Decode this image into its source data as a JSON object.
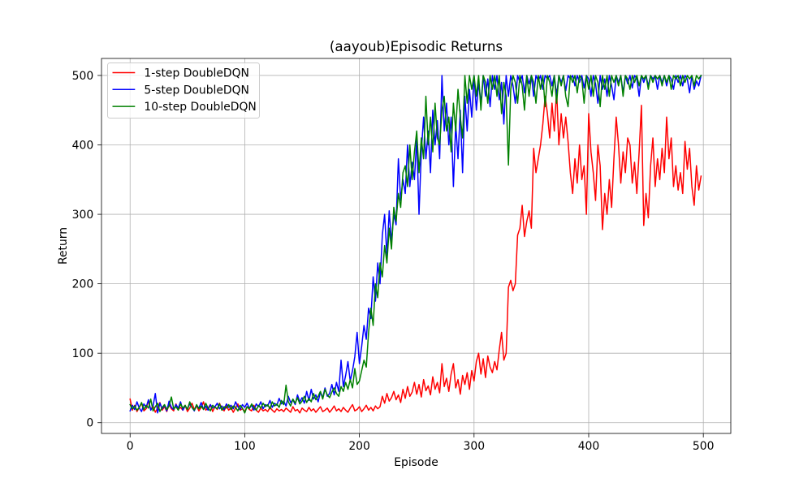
{
  "chart_data": {
    "type": "line",
    "title": "(aayoub)Episodic Returns",
    "xlabel": "Episode",
    "ylabel": "Return",
    "xlim": [
      -24.95,
      523.95
    ],
    "ylim": [
      -15.5,
      524.5
    ],
    "xticks": [
      0,
      100,
      200,
      300,
      400,
      500
    ],
    "yticks": [
      0,
      100,
      200,
      300,
      400,
      500
    ],
    "grid": true,
    "legend_position": "upper-left",
    "x": [
      0,
      2,
      4,
      6,
      8,
      10,
      12,
      14,
      16,
      18,
      20,
      22,
      24,
      26,
      28,
      30,
      32,
      34,
      36,
      38,
      40,
      42,
      44,
      46,
      48,
      50,
      52,
      54,
      56,
      58,
      60,
      62,
      64,
      66,
      68,
      70,
      72,
      74,
      76,
      78,
      80,
      82,
      84,
      86,
      88,
      90,
      92,
      94,
      96,
      98,
      100,
      102,
      104,
      106,
      108,
      110,
      112,
      114,
      116,
      118,
      120,
      122,
      124,
      126,
      128,
      130,
      132,
      134,
      136,
      138,
      140,
      142,
      144,
      146,
      148,
      150,
      152,
      154,
      156,
      158,
      160,
      162,
      164,
      166,
      168,
      170,
      172,
      174,
      176,
      178,
      180,
      182,
      184,
      186,
      188,
      190,
      192,
      194,
      196,
      198,
      200,
      202,
      204,
      206,
      208,
      210,
      212,
      214,
      216,
      218,
      220,
      222,
      224,
      226,
      228,
      230,
      232,
      234,
      236,
      238,
      240,
      242,
      244,
      246,
      248,
      250,
      252,
      254,
      256,
      258,
      260,
      262,
      264,
      266,
      268,
      270,
      272,
      274,
      276,
      278,
      280,
      282,
      284,
      286,
      288,
      290,
      292,
      294,
      296,
      298,
      300,
      302,
      304,
      306,
      308,
      310,
      312,
      314,
      316,
      318,
      320,
      322,
      324,
      326,
      328,
      330,
      332,
      334,
      336,
      338,
      340,
      342,
      344,
      346,
      348,
      350,
      352,
      354,
      356,
      358,
      360,
      362,
      364,
      366,
      368,
      370,
      372,
      374,
      376,
      378,
      380,
      382,
      384,
      386,
      388,
      390,
      392,
      394,
      396,
      398,
      400,
      402,
      404,
      406,
      408,
      410,
      412,
      414,
      416,
      418,
      420,
      422,
      424,
      426,
      428,
      430,
      432,
      434,
      436,
      438,
      440,
      442,
      444,
      446,
      448,
      450,
      452,
      454,
      456,
      458,
      460,
      462,
      464,
      466,
      468,
      470,
      472,
      474,
      476,
      478,
      480,
      482,
      484,
      486,
      488,
      490,
      492,
      494,
      496,
      498
    ],
    "series": [
      {
        "name": "1-step DoubleDQN",
        "color": "#ff0000",
        "values": [
          34,
          18,
          25,
          16,
          22,
          28,
          17,
          20,
          31,
          19,
          24,
          15,
          21,
          29,
          18,
          23,
          16,
          26,
          20,
          17,
          27,
          19,
          22,
          18,
          25,
          16,
          21,
          28,
          19,
          24,
          17,
          22,
          30,
          18,
          21,
          26,
          16,
          23,
          19,
          28,
          20,
          17,
          24,
          18,
          22,
          15,
          21,
          27,
          18,
          20,
          16,
          23,
          19,
          17,
          25,
          18,
          15,
          21,
          17,
          19,
          16,
          22,
          18,
          15,
          20,
          17,
          19,
          16,
          21,
          18,
          15,
          23,
          17,
          19,
          14,
          21,
          18,
          16,
          22,
          17,
          20,
          15,
          19,
          23,
          16,
          18,
          21,
          15,
          19,
          24,
          17,
          20,
          16,
          22,
          18,
          15,
          21,
          26,
          17,
          19,
          23,
          16,
          20,
          25,
          18,
          22,
          17,
          24,
          20,
          23,
          38,
          28,
          42,
          31,
          36,
          45,
          33,
          40,
          29,
          48,
          35,
          52,
          38,
          44,
          58,
          41,
          55,
          37,
          62,
          46,
          53,
          40,
          66,
          48,
          58,
          43,
          85,
          52,
          64,
          45,
          70,
          85,
          50,
          62,
          41,
          68,
          55,
          72,
          48,
          75,
          60,
          88,
          100,
          70,
          92,
          65,
          96,
          80,
          72,
          88,
          76,
          105,
          130,
          90,
          100,
          195,
          205,
          190,
          200,
          270,
          280,
          313,
          268,
          290,
          305,
          280,
          395,
          360,
          380,
          400,
          430,
          470,
          445,
          410,
          460,
          420,
          480,
          400,
          445,
          410,
          440,
          405,
          360,
          330,
          380,
          345,
          400,
          350,
          370,
          300,
          445,
          390,
          360,
          320,
          400,
          370,
          278,
          330,
          300,
          350,
          310,
          380,
          440,
          400,
          345,
          390,
          360,
          410,
          400,
          345,
          375,
          330,
          390,
          457,
          284,
          330,
          295,
          370,
          410,
          340,
          380,
          350,
          395,
          360,
          440,
          380,
          410,
          340,
          370,
          335,
          360,
          330,
          405,
          365,
          395,
          340,
          313,
          370,
          335,
          355
        ]
      },
      {
        "name": "5-step DoubleDQN",
        "color": "#0000ff",
        "values": [
          17,
          25,
          19,
          30,
          21,
          16,
          27,
          22,
          33,
          18,
          24,
          42,
          14,
          28,
          20,
          25,
          17,
          31,
          22,
          19,
          26,
          21,
          30,
          18,
          24,
          20,
          27,
          22,
          17,
          25,
          21,
          29,
          19,
          24,
          18,
          26,
          21,
          23,
          28,
          20,
          24,
          19,
          27,
          22,
          25,
          20,
          30,
          23,
          19,
          26,
          22,
          28,
          21,
          25,
          18,
          27,
          23,
          30,
          20,
          26,
          24,
          32,
          22,
          28,
          25,
          35,
          27,
          31,
          24,
          38,
          29,
          33,
          26,
          40,
          30,
          36,
          28,
          45,
          32,
          48,
          34,
          40,
          30,
          44,
          36,
          50,
          38,
          42,
          55,
          40,
          58,
          45,
          90,
          52,
          68,
          88,
          60,
          75,
          95,
          130,
          85,
          110,
          140,
          120,
          165,
          150,
          210,
          175,
          230,
          200,
          270,
          300,
          240,
          305,
          260,
          300,
          285,
          380,
          320,
          350,
          330,
          400,
          340,
          375,
          350,
          410,
          300,
          390,
          440,
          380,
          420,
          360,
          450,
          400,
          435,
          380,
          500,
          420,
          460,
          400,
          440,
          340,
          430,
          380,
          450,
          360,
          470,
          420,
          480,
          440,
          500,
          450,
          490,
          460,
          500,
          470,
          495,
          455,
          500,
          480,
          500,
          465,
          490,
          430,
          500,
          470,
          500,
          485,
          460,
          500,
          490,
          500,
          475,
          500,
          488,
          500,
          470,
          500,
          492,
          500,
          480,
          500,
          495,
          500,
          485,
          500,
          470,
          500,
          490,
          500,
          478,
          500,
          495,
          500,
          485,
          500,
          490,
          500,
          482,
          500,
          495,
          470,
          500,
          488,
          460,
          500,
          480,
          495,
          470,
          500,
          485,
          465,
          500,
          490,
          500,
          475,
          500,
          488,
          500,
          482,
          500,
          495,
          470,
          500,
          490,
          500,
          485,
          500,
          495,
          500,
          480,
          500,
          490,
          500,
          485,
          500,
          495,
          480,
          500,
          490,
          500,
          485,
          500,
          495,
          475,
          500,
          480,
          492,
          485,
          500
        ]
      },
      {
        "name": "10-step DoubleDQN",
        "color": "#008000",
        "values": [
          26,
          20,
          24,
          18,
          22,
          29,
          19,
          25,
          21,
          34,
          17,
          23,
          28,
          16,
          22,
          26,
          19,
          24,
          37,
          20,
          23,
          18,
          27,
          21,
          25,
          19,
          30,
          22,
          18,
          26,
          20,
          24,
          19,
          28,
          21,
          17,
          25,
          22,
          20,
          27,
          18,
          23,
          21,
          26,
          19,
          24,
          22,
          17,
          25,
          21,
          14,
          23,
          20,
          27,
          22,
          18,
          25,
          21,
          28,
          23,
          26,
          20,
          30,
          24,
          27,
          22,
          32,
          26,
          54,
          30,
          24,
          34,
          28,
          36,
          27,
          31,
          38,
          29,
          35,
          30,
          42,
          33,
          38,
          45,
          34,
          48,
          40,
          36,
          44,
          50,
          42,
          38,
          52,
          45,
          58,
          48,
          62,
          50,
          78,
          55,
          60,
          75,
          90,
          80,
          130,
          165,
          140,
          200,
          180,
          230,
          210,
          255,
          230,
          280,
          250,
          310,
          290,
          330,
          310,
          360,
          370,
          340,
          400,
          350,
          390,
          420,
          360,
          410,
          380,
          470,
          400,
          440,
          390,
          460,
          410,
          400,
          450,
          470,
          420,
          440,
          390,
          460,
          420,
          480,
          440,
          410,
          500,
          460,
          500,
          480,
          500,
          470,
          500,
          450,
          500,
          490,
          460,
          500,
          480,
          500,
          470,
          500,
          445,
          490,
          470,
          371,
          480,
          500,
          490,
          460,
          500,
          485,
          450,
          500,
          470,
          500,
          490,
          460,
          500,
          480,
          500,
          455,
          500,
          490,
          470,
          500,
          460,
          500,
          485,
          500,
          470,
          455,
          500,
          490,
          500,
          475,
          500,
          495,
          460,
          500,
          480,
          500,
          470,
          500,
          490,
          455,
          500,
          480,
          500,
          470,
          500,
          490,
          500,
          485,
          500,
          470,
          500,
          495,
          480,
          500,
          490,
          500,
          485,
          500,
          495,
          500,
          480,
          500,
          490,
          500,
          495,
          500,
          485,
          500,
          490,
          500,
          480,
          500,
          495,
          500,
          485,
          500,
          490,
          500,
          495,
          500,
          485,
          500,
          495,
          500
        ]
      }
    ]
  }
}
